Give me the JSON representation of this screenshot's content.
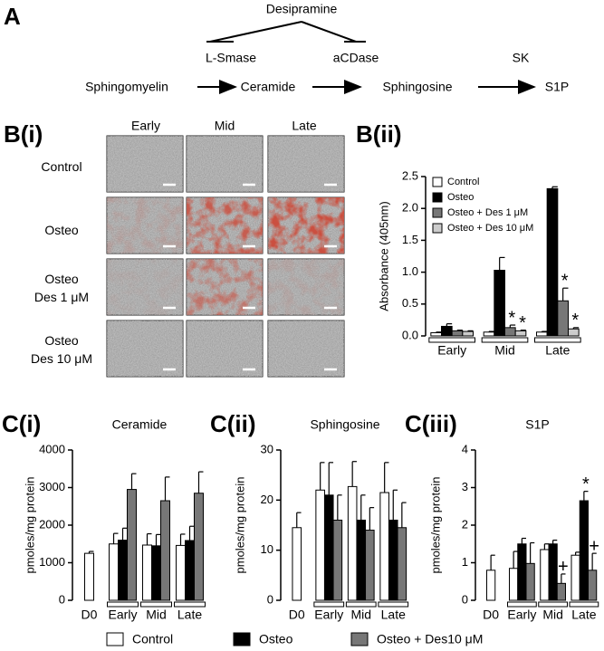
{
  "diagram": {
    "label": "A",
    "inhibitor": "Desipramine",
    "enzymes": [
      "L-Smase",
      "aCDase",
      "SK"
    ],
    "metabolites": [
      "Sphingomyelin",
      "Ceramide",
      "Sphingosine",
      "S1P"
    ]
  },
  "image_grid": {
    "label": "B(i)",
    "columns": [
      "Early",
      "Mid",
      "Late"
    ],
    "rows": [
      [
        "Control"
      ],
      [
        "Osteo"
      ],
      [
        "Osteo",
        "Des 1 μM"
      ],
      [
        "Osteo",
        "Des 10 μM"
      ]
    ]
  },
  "chart_data": [
    {
      "type": "bar",
      "panel": "B(ii)",
      "y_label": "Absorbance (405nm)",
      "legend": "upper-left",
      "categories": [
        "Early",
        "Mid",
        "Late"
      ],
      "ylim": [
        0,
        2.5
      ],
      "yticks": [
        {
          "value": 0,
          "label": "0.0"
        },
        {
          "value": 0.5,
          "label": "0.5"
        },
        {
          "value": 1,
          "label": "1.0"
        },
        {
          "value": 1.5,
          "label": "1.5"
        },
        {
          "value": 2,
          "label": "2.0"
        },
        {
          "value": 2.5,
          "label": "2.5"
        }
      ],
      "series": [
        {
          "name": "Control",
          "color": "#ffffff",
          "values": [
            0.05,
            0.06,
            0.06
          ],
          "errors": [
            0.01,
            0.01,
            0.01
          ]
        },
        {
          "name": "Osteo",
          "color": "#000000",
          "values": [
            0.15,
            1.03,
            2.31
          ],
          "errors": [
            0.04,
            0.2,
            0.03
          ]
        },
        {
          "name": "Osteo + Des 1 μM",
          "color": "#777777",
          "values": [
            0.08,
            0.13,
            0.55
          ],
          "errors": [
            0.01,
            0.04,
            0.2
          ],
          "significance": [
            null,
            "*",
            "*"
          ]
        },
        {
          "name": "Osteo + Des 10 μM",
          "color": "#cccccc",
          "values": [
            0.07,
            0.08,
            0.11
          ],
          "errors": [
            0.01,
            0.01,
            0.02
          ],
          "significance": [
            null,
            "*",
            "*"
          ]
        }
      ]
    },
    {
      "type": "bar",
      "panel": "C(i)",
      "title": "Ceramide",
      "y_label": "pmoles/mg protein",
      "legend": "bottom",
      "categories": [
        "D0",
        "Early",
        "Mid",
        "Late"
      ],
      "ylim": [
        0,
        4000
      ],
      "yticks": [
        0,
        1000,
        2000,
        3000,
        4000
      ],
      "series": [
        {
          "name": "Control",
          "color": "#ffffff",
          "values": [
            1250,
            1500,
            1470,
            1460
          ],
          "errors": [
            50,
            280,
            300,
            300
          ]
        },
        {
          "name": "Osteo",
          "color": "#000000",
          "values": [
            null,
            1600,
            1450,
            1590
          ],
          "errors": [
            null,
            320,
            300,
            380
          ]
        },
        {
          "name": "Osteo + Des10 μM",
          "color": "#777777",
          "values": [
            null,
            2950,
            2650,
            2850
          ],
          "errors": [
            null,
            420,
            630,
            570
          ]
        }
      ]
    },
    {
      "type": "bar",
      "panel": "C(ii)",
      "title": "Sphingosine",
      "y_label": "pmoles/mg protein",
      "categories": [
        "D0",
        "Early",
        "Mid",
        "Late"
      ],
      "ylim": [
        0,
        30
      ],
      "yticks": [
        0,
        10,
        20,
        30
      ],
      "series": [
        {
          "color": "#ffffff",
          "values": [
            14.5,
            22,
            22.7,
            21.5
          ],
          "errors": [
            3,
            5.5,
            5,
            6
          ]
        },
        {
          "color": "#000000",
          "values": [
            null,
            21,
            16,
            16
          ],
          "errors": [
            null,
            6.5,
            5,
            6
          ]
        },
        {
          "color": "#777777",
          "values": [
            null,
            16,
            14,
            14.5
          ],
          "errors": [
            null,
            5,
            4.5,
            5
          ]
        }
      ]
    },
    {
      "type": "bar",
      "panel": "C(iii)",
      "title": "S1P",
      "y_label": "pmoles/mg protein",
      "categories": [
        "D0",
        "Early",
        "Mid",
        "Late"
      ],
      "ylim": [
        0,
        4
      ],
      "yticks": [
        0,
        1,
        2,
        3,
        4
      ],
      "series": [
        {
          "color": "#ffffff",
          "values": [
            0.8,
            0.85,
            1.35,
            1.2
          ],
          "errors": [
            0.4,
            0.45,
            0.15,
            0.08
          ]
        },
        {
          "color": "#000000",
          "values": [
            null,
            1.5,
            1.5,
            2.65
          ],
          "errors": [
            null,
            0.15,
            0.1,
            0.25
          ],
          "significance": [
            null,
            null,
            null,
            "*"
          ]
        },
        {
          "color": "#777777",
          "values": [
            null,
            0.98,
            0.45,
            0.8
          ],
          "errors": [
            null,
            0.55,
            0.25,
            0.45
          ],
          "significance": [
            null,
            null,
            "+",
            "+"
          ]
        }
      ]
    }
  ]
}
